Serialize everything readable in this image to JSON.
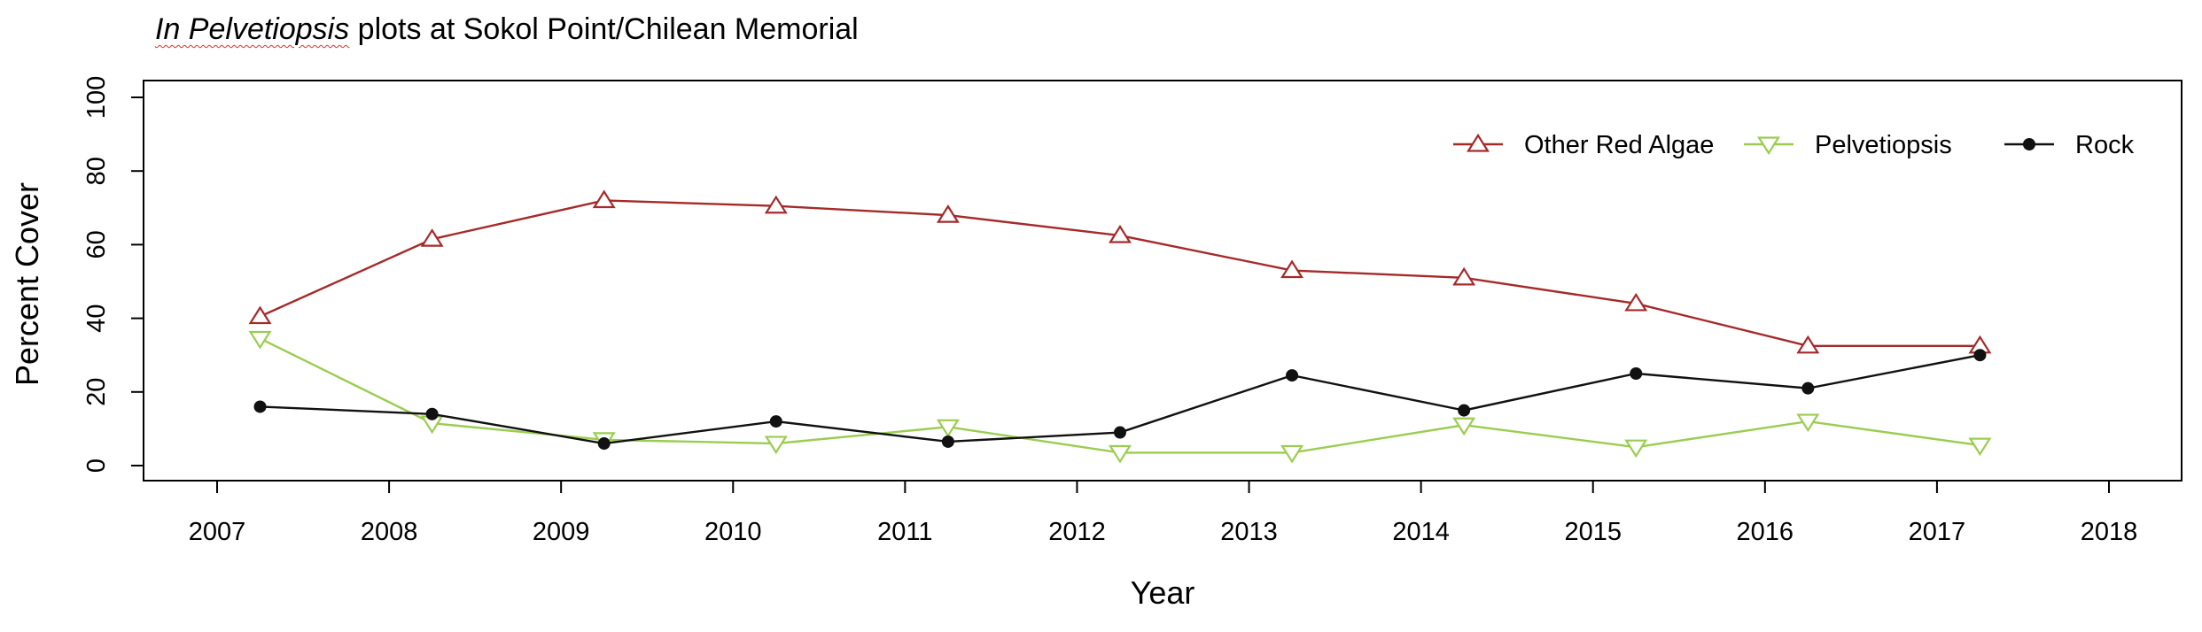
{
  "chart_data": {
    "type": "line",
    "title_italic": "In Pelvetiopsis",
    "title_rest": " plots at Sokol Point/Chilean Memorial",
    "xlabel": "Year",
    "ylabel": "Percent Cover",
    "xlim": [
      2007,
      2018
    ],
    "ylim": [
      0,
      100
    ],
    "x_ticks": [
      "2007",
      "2008",
      "2009",
      "2010",
      "2011",
      "2012",
      "2013",
      "2014",
      "2015",
      "2016",
      "2017",
      "2018"
    ],
    "y_ticks": [
      "0",
      "20",
      "40",
      "60",
      "80",
      "100"
    ],
    "legend_position": "top-right",
    "grid": false,
    "x": [
      2007.25,
      2008.25,
      2009.25,
      2010.25,
      2011.25,
      2012.25,
      2013.25,
      2014.25,
      2015.25,
      2016.25,
      2017.25
    ],
    "series": [
      {
        "name": "Other Red Algae",
        "color": "#a52a2a",
        "marker": "triangle-up",
        "values": [
          40.5,
          61.5,
          72,
          70.5,
          68,
          62.5,
          53,
          51,
          44,
          32.5,
          32.5
        ]
      },
      {
        "name": "Pelvetiopsis",
        "color": "#9acd4f",
        "marker": "triangle-down",
        "values": [
          34.5,
          11.5,
          7,
          6,
          10.5,
          3.5,
          3.5,
          11,
          5,
          12,
          5.5
        ]
      },
      {
        "name": "Rock",
        "color": "#111111",
        "marker": "filled-circle",
        "values": [
          16,
          14,
          6,
          12,
          6.5,
          9,
          24.5,
          15,
          25,
          21,
          30
        ]
      }
    ]
  }
}
